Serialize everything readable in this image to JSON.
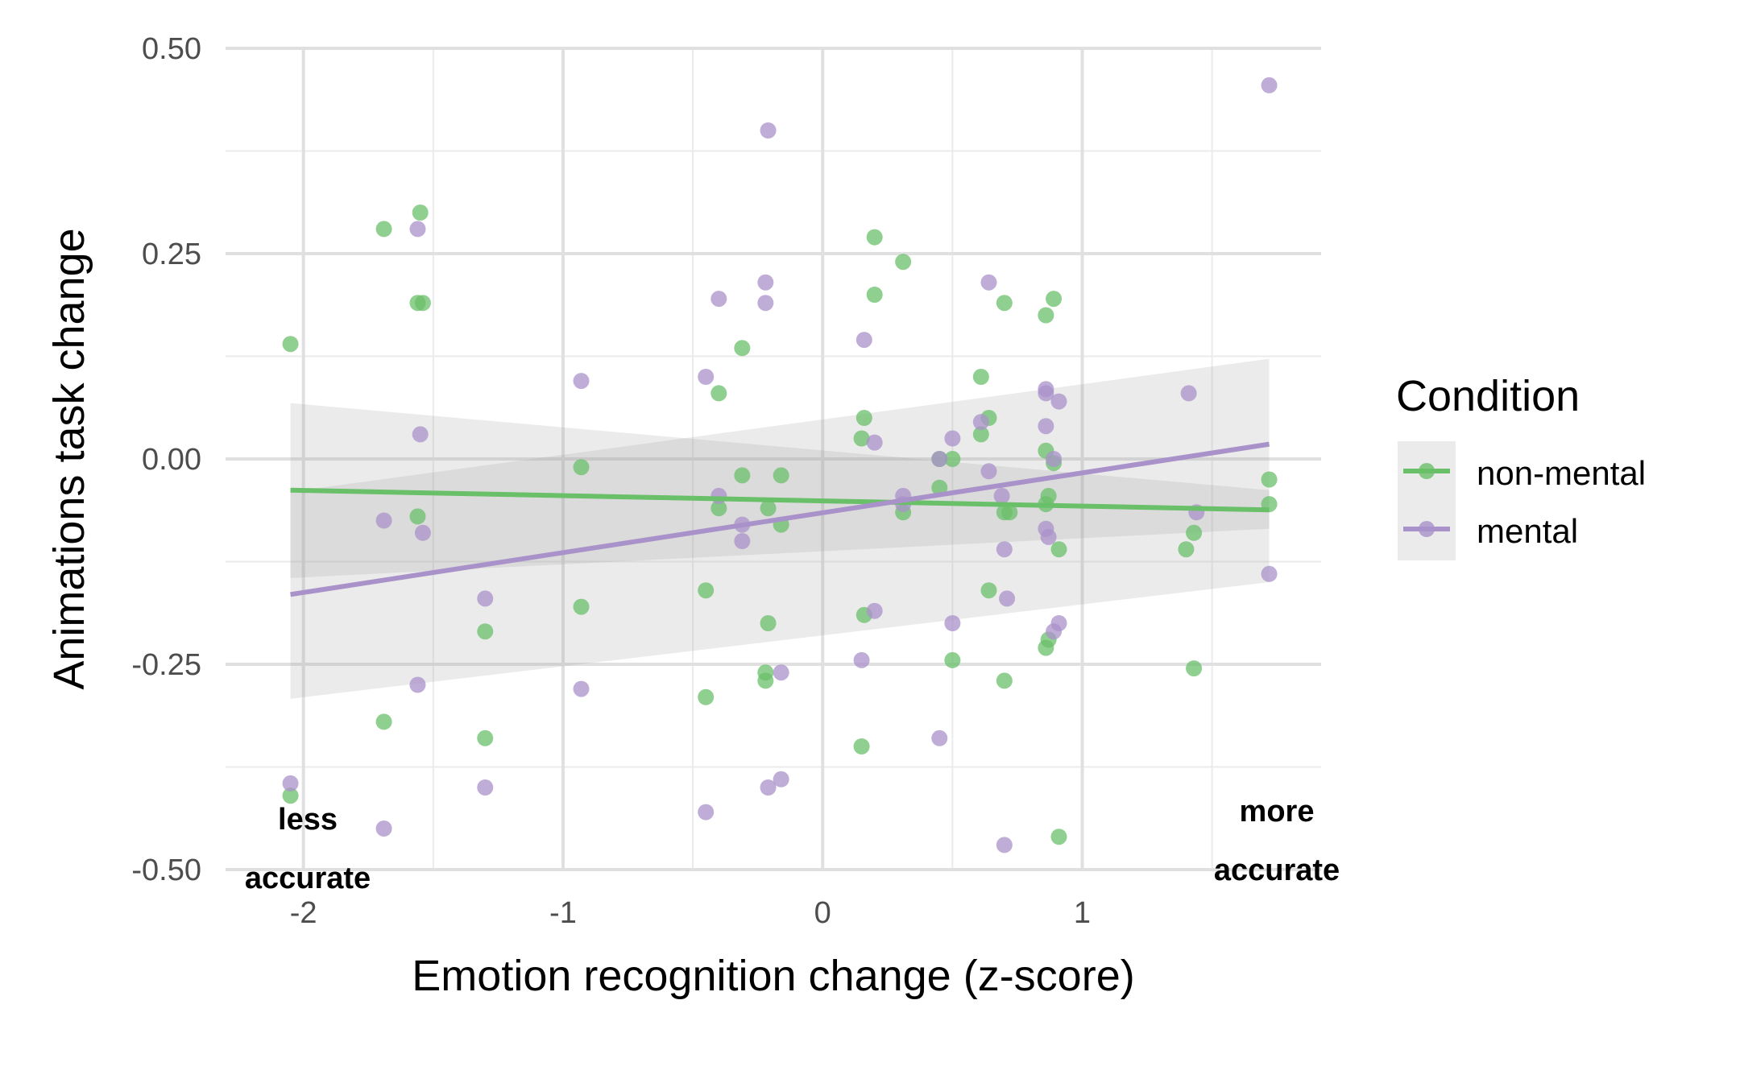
{
  "chart_data": {
    "type": "scatter",
    "xlabel": "Emotion recognition change (z-score)",
    "ylabel": "Animations task change",
    "xlim": [
      -2.3,
      1.92
    ],
    "ylim": [
      -0.5,
      0.5
    ],
    "xticks": [
      -2,
      -1,
      0,
      1
    ],
    "xtick_labels": [
      "-2",
      "-1",
      "0",
      "1"
    ],
    "yticks": [
      -0.5,
      -0.25,
      0,
      0.25,
      0.5
    ],
    "ytick_labels": [
      "-0.50",
      "-0.25",
      "0.00",
      "0.25",
      "0.50"
    ],
    "grid": true,
    "legend": {
      "title": "Condition",
      "position": "right",
      "entries": [
        "non-mental",
        "mental"
      ]
    },
    "annotations": {
      "left_line1": "less",
      "left_line2": "accurate",
      "right_line1": "more",
      "right_line2": "accurate"
    },
    "series": [
      {
        "name": "non-mental",
        "color": "#6abf69",
        "points": [
          [
            -2.05,
            0.14
          ],
          [
            -2.05,
            -0.41
          ],
          [
            -1.69,
            0.28
          ],
          [
            -1.69,
            -0.32
          ],
          [
            -1.55,
            0.3
          ],
          [
            -1.56,
            0.19
          ],
          [
            -1.54,
            0.19
          ],
          [
            -1.56,
            -0.07
          ],
          [
            -1.3,
            -0.21
          ],
          [
            -1.3,
            -0.34
          ],
          [
            -0.93,
            -0.01
          ],
          [
            -0.93,
            -0.18
          ],
          [
            -0.45,
            -0.16
          ],
          [
            -0.45,
            -0.29
          ],
          [
            -0.4,
            0.08
          ],
          [
            -0.4,
            -0.06
          ],
          [
            -0.31,
            0.135
          ],
          [
            -0.31,
            -0.02
          ],
          [
            -0.21,
            -0.06
          ],
          [
            -0.21,
            -0.2
          ],
          [
            -0.22,
            -0.26
          ],
          [
            -0.22,
            -0.27
          ],
          [
            -0.16,
            -0.02
          ],
          [
            -0.16,
            -0.08
          ],
          [
            0.15,
            -0.35
          ],
          [
            0.15,
            0.025
          ],
          [
            0.16,
            0.05
          ],
          [
            0.16,
            -0.19
          ],
          [
            0.2,
            0.27
          ],
          [
            0.2,
            0.2
          ],
          [
            0.31,
            0.24
          ],
          [
            0.31,
            -0.065
          ],
          [
            0.45,
            0.0
          ],
          [
            0.45,
            -0.035
          ],
          [
            0.5,
            0.0
          ],
          [
            0.5,
            -0.245
          ],
          [
            0.61,
            0.1
          ],
          [
            0.61,
            0.03
          ],
          [
            0.64,
            0.05
          ],
          [
            0.64,
            -0.16
          ],
          [
            0.7,
            0.19
          ],
          [
            0.7,
            -0.27
          ],
          [
            0.7,
            -0.065
          ],
          [
            0.72,
            -0.065
          ],
          [
            0.86,
            0.175
          ],
          [
            0.86,
            0.01
          ],
          [
            0.87,
            -0.045
          ],
          [
            0.86,
            -0.055
          ],
          [
            0.87,
            -0.22
          ],
          [
            0.86,
            -0.23
          ],
          [
            0.89,
            0.195
          ],
          [
            0.89,
            -0.005
          ],
          [
            0.91,
            -0.11
          ],
          [
            0.91,
            -0.46
          ],
          [
            1.4,
            -0.11
          ],
          [
            1.43,
            -0.09
          ],
          [
            1.43,
            -0.255
          ],
          [
            1.72,
            -0.025
          ],
          [
            1.72,
            -0.055
          ]
        ]
      },
      {
        "name": "mental",
        "color": "#a992c9",
        "points": [
          [
            -2.05,
            -0.395
          ],
          [
            -1.69,
            -0.075
          ],
          [
            -1.69,
            -0.45
          ],
          [
            -1.56,
            0.28
          ],
          [
            -1.56,
            -0.275
          ],
          [
            -1.55,
            0.03
          ],
          [
            -1.54,
            -0.09
          ],
          [
            -1.3,
            -0.17
          ],
          [
            -1.3,
            -0.4
          ],
          [
            -0.93,
            0.095
          ],
          [
            -0.93,
            -0.28
          ],
          [
            -0.45,
            0.1
          ],
          [
            -0.45,
            -0.43
          ],
          [
            -0.4,
            0.195
          ],
          [
            -0.4,
            -0.045
          ],
          [
            -0.31,
            -0.08
          ],
          [
            -0.31,
            -0.1
          ],
          [
            -0.22,
            0.215
          ],
          [
            -0.22,
            0.19
          ],
          [
            -0.21,
            0.4
          ],
          [
            -0.21,
            -0.4
          ],
          [
            -0.16,
            -0.26
          ],
          [
            -0.16,
            -0.39
          ],
          [
            0.15,
            -0.245
          ],
          [
            0.16,
            0.145
          ],
          [
            0.2,
            0.02
          ],
          [
            0.2,
            -0.185
          ],
          [
            0.31,
            -0.045
          ],
          [
            0.31,
            -0.055
          ],
          [
            0.45,
            0.0
          ],
          [
            0.45,
            -0.34
          ],
          [
            0.5,
            0.025
          ],
          [
            0.5,
            -0.2
          ],
          [
            0.61,
            0.045
          ],
          [
            0.64,
            0.215
          ],
          [
            0.64,
            -0.015
          ],
          [
            0.69,
            -0.045
          ],
          [
            0.7,
            -0.11
          ],
          [
            0.7,
            -0.47
          ],
          [
            0.71,
            -0.17
          ],
          [
            0.86,
            0.085
          ],
          [
            0.86,
            0.08
          ],
          [
            0.86,
            0.04
          ],
          [
            0.86,
            -0.085
          ],
          [
            0.87,
            -0.095
          ],
          [
            0.89,
            -0.21
          ],
          [
            0.89,
            0.0
          ],
          [
            0.91,
            0.07
          ],
          [
            0.91,
            -0.2
          ],
          [
            1.41,
            0.08
          ],
          [
            1.44,
            -0.065
          ],
          [
            1.72,
            0.455
          ],
          [
            1.72,
            -0.14
          ]
        ]
      }
    ],
    "fits": [
      {
        "name": "non-mental",
        "x": [
          -2.05,
          1.72
        ],
        "y": [
          -0.038,
          -0.062
        ],
        "ci_lower": [
          -0.145,
          -0.085
        ],
        "ci_upper": [
          0.068,
          -0.038
        ]
      },
      {
        "name": "mental",
        "x": [
          -2.05,
          1.72
        ],
        "y": [
          -0.165,
          0.018
        ],
        "ci_lower": [
          -0.292,
          -0.15
        ],
        "ci_upper": [
          -0.04,
          0.122
        ]
      }
    ]
  }
}
